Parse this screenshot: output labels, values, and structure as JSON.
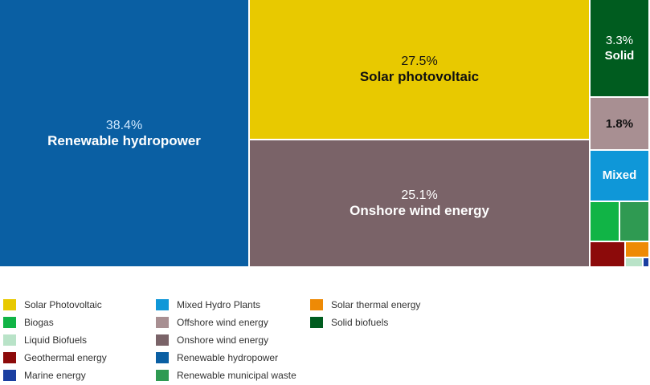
{
  "chart_data": {
    "type": "treemap",
    "tiles": [
      {
        "key": "hydro",
        "pct": "38.4%",
        "label": "Renewable hydropower",
        "value": 38.4,
        "color": "#0a5fa3",
        "text_color": "#ffffff",
        "pct_color": "#cfe8ff"
      },
      {
        "key": "solar_pv",
        "pct": "27.5%",
        "label": "Solar photovoltaic",
        "value": 27.5,
        "color": "#e8c900",
        "text_color": "#111111",
        "pct_color": "#111111"
      },
      {
        "key": "onshore",
        "pct": "25.1%",
        "label": "Onshore wind energy",
        "value": 25.1,
        "color": "#7a6368",
        "text_color": "#ffffff",
        "pct_color": "#ffffff"
      },
      {
        "key": "solid",
        "pct": "3.3%",
        "label": "Solid",
        "value": 3.3,
        "color": "#005c1f",
        "text_color": "#ffffff",
        "pct_color": "#ffffff"
      },
      {
        "key": "offshore",
        "pct": "1.8%",
        "label": "",
        "value": 1.8,
        "color": "#a88f92",
        "text_color": "#111111",
        "pct_color": "#111111"
      },
      {
        "key": "mixed",
        "pct": "",
        "label": "Mixed",
        "value": 1.6,
        "color": "#0f97d8",
        "text_color": "#ffffff",
        "pct_color": "#ffffff"
      },
      {
        "key": "biogas",
        "pct": "",
        "label": "",
        "value": 0.8,
        "color": "#11b446",
        "text_color": "#ffffff",
        "pct_color": "#ffffff"
      },
      {
        "key": "municipal",
        "pct": "",
        "label": "",
        "value": 0.7,
        "color": "#2f9a52",
        "text_color": "#ffffff",
        "pct_color": "#ffffff"
      },
      {
        "key": "geothermal",
        "pct": "",
        "label": "",
        "value": 0.5,
        "color": "#8c0a0a",
        "text_color": "#ffffff",
        "pct_color": "#ffffff"
      },
      {
        "key": "solar_thermal",
        "pct": "",
        "label": "",
        "value": 0.2,
        "color": "#ee8a05",
        "text_color": "#ffffff",
        "pct_color": "#ffffff"
      },
      {
        "key": "liquid",
        "pct": "",
        "label": "",
        "value": 0.1,
        "color": "#b9e3c8",
        "text_color": "#ffffff",
        "pct_color": "#ffffff"
      },
      {
        "key": "marine",
        "pct": "",
        "label": "",
        "value": 0.05,
        "color": "#1a3ea0",
        "text_color": "#ffffff",
        "pct_color": "#ffffff"
      }
    ],
    "legend": [
      {
        "label": "Solar Photovoltaic",
        "color": "#e8c900"
      },
      {
        "label": "Biogas",
        "color": "#11b446"
      },
      {
        "label": "Liquid Biofuels",
        "color": "#b9e3c8"
      },
      {
        "label": "Geothermal energy",
        "color": "#8c0a0a"
      },
      {
        "label": "Marine energy",
        "color": "#1a3ea0"
      },
      {
        "label": "Mixed Hydro Plants",
        "color": "#0f97d8"
      },
      {
        "label": "Offshore wind energy",
        "color": "#a88f92"
      },
      {
        "label": "Onshore wind energy",
        "color": "#7a6368"
      },
      {
        "label": "Renewable hydropower",
        "color": "#0a5fa3"
      },
      {
        "label": "Renewable municipal waste",
        "color": "#2f9a52"
      },
      {
        "label": "Solar thermal energy",
        "color": "#ee8a05"
      },
      {
        "label": "Solid biofuels",
        "color": "#005c1f"
      }
    ],
    "legend_placement": "bottom"
  }
}
